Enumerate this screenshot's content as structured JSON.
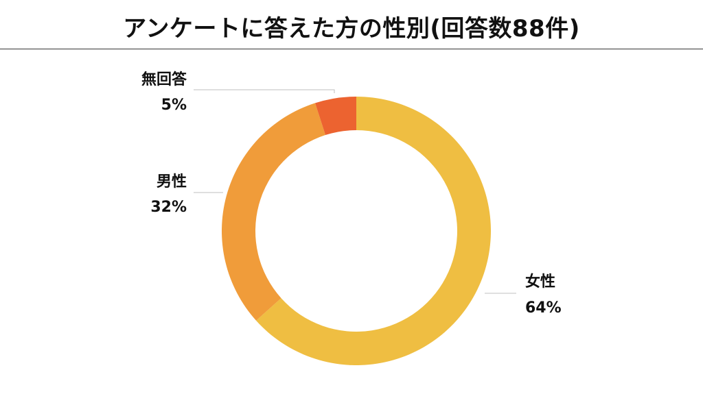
{
  "header": {
    "title": "アンケートに答えた方の性別(回答数88件)"
  },
  "chart_data": {
    "type": "pie",
    "title": "アンケートに答えた方の性別(回答数88件)",
    "donut": true,
    "start": "top",
    "direction": "clockwise",
    "legend": "none",
    "slices": [
      {
        "label": "女性",
        "value": 64,
        "value_label": "64%",
        "color": "#EFBE42"
      },
      {
        "label": "男性",
        "value": 32,
        "value_label": "32%",
        "color": "#F09C3A"
      },
      {
        "label": "無回答",
        "value": 5,
        "value_label": "5%",
        "color": "#EC6330"
      }
    ]
  }
}
